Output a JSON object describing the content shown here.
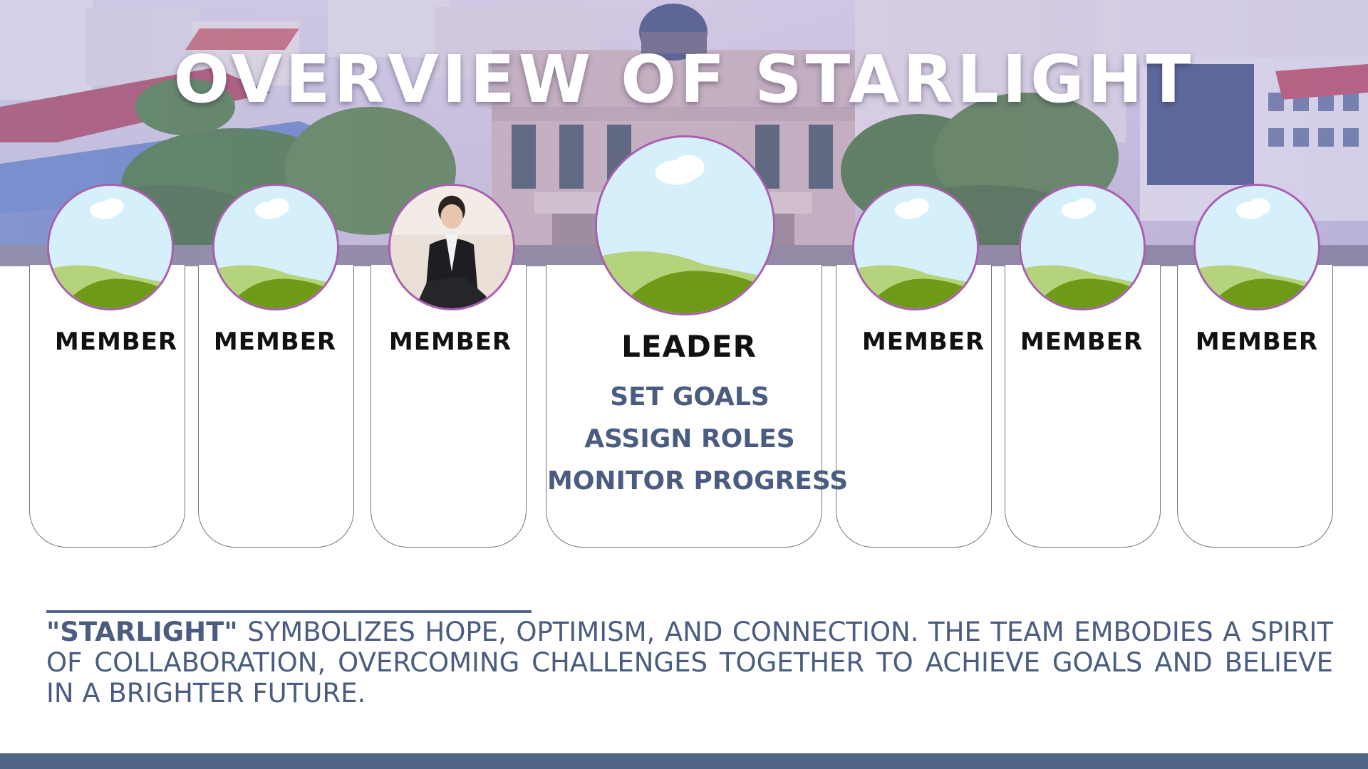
{
  "title": "OVERVIEW OF STARLIGHT",
  "members": [
    {
      "role": "MEMBER",
      "photo": "placeholder-image-icon"
    },
    {
      "role": "MEMBER",
      "photo": "placeholder-image-icon"
    },
    {
      "role": "MEMBER",
      "photo": "person-photo"
    },
    {
      "role": "LEADER",
      "photo": "placeholder-image-icon",
      "duties": [
        "SET GOALS",
        "ASSIGN ROLES",
        "MONITOR PROGRESS"
      ]
    },
    {
      "role": "MEMBER",
      "photo": "placeholder-image-icon"
    },
    {
      "role": "MEMBER",
      "photo": "placeholder-image-icon"
    },
    {
      "role": "MEMBER",
      "photo": "placeholder-image-icon"
    }
  ],
  "description": {
    "highlight": "\"STARLIGHT\"",
    "text": "SYMBOLIZES HOPE, OPTIMISM, AND CONNECTION. THE TEAM EMBODIES A SPIRIT OF COLLABORATION, OVERCOMING CHALLENGES TOGETHER TO ACHIEVE GOALS AND BELIEVE IN A BRIGHTER FUTURE."
  },
  "colors": {
    "accent": "#4f6487",
    "duty_text": "#4a5c80",
    "card_border": "#6e7480",
    "avatar_ring": "#a85fb0"
  }
}
